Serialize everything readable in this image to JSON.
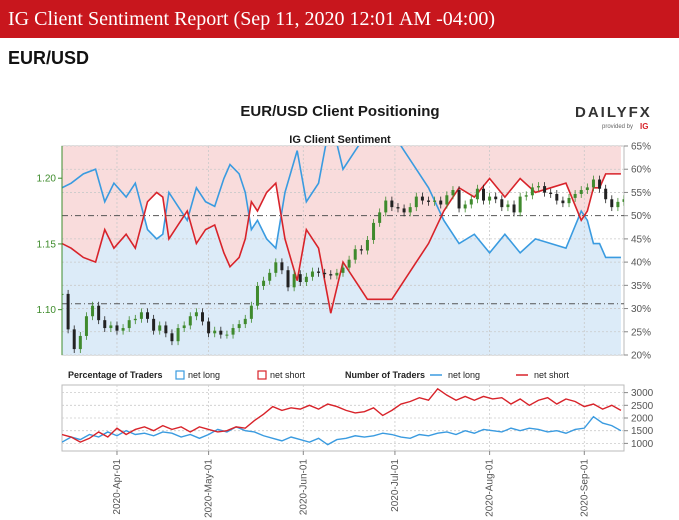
{
  "header": {
    "title": "IG Client Sentiment Report (Sep 11, 2020 12:01 AM -04:00)",
    "pair": "EUR/USD"
  },
  "brand": {
    "name": "DAILYFX",
    "provided_by": "provided by",
    "ig": "IG"
  },
  "colors": {
    "banner": "#c8161d",
    "net_long": "#3a9be0",
    "net_short": "#d8232a",
    "long_fill": "#dcebf8",
    "short_fill": "#f9dcdc",
    "candle_up": "#3f8a2d",
    "candle_down": "#222222"
  },
  "chart_data": [
    {
      "type": "line",
      "title": "EUR/USD Client Positioning",
      "subtitle": "IG Client Sentiment",
      "x_ticks": [
        "2020-Apr-01",
        "2020-May-01",
        "2020-Jun-01",
        "2020-Jul-01",
        "2020-Aug-01",
        "2020-Sep-01"
      ],
      "x_tick_days": [
        18,
        48,
        79,
        109,
        140,
        171
      ],
      "left_axis": {
        "ticks": [
          1.1,
          1.15,
          1.2
        ],
        "tick_labels": [
          "1.10",
          "1.15",
          "1.20"
        ],
        "ylim": [
          1.0655,
          1.2245
        ]
      },
      "right_axis": {
        "ticks": [
          20,
          25,
          30,
          35,
          40,
          45,
          50,
          55,
          60,
          65
        ],
        "tick_labels": [
          "20%",
          "25%",
          "30%",
          "35%",
          "40%",
          "45%",
          "50%",
          "55%",
          "60%",
          "65%"
        ],
        "ylim": [
          20,
          65
        ]
      },
      "reference_lines": {
        "percent": 50,
        "price": 1.1045
      },
      "series": [
        {
          "name": "net long",
          "unit": "percent",
          "x": [
            0,
            3,
            7,
            11,
            14,
            17,
            21,
            24,
            28,
            31,
            33,
            35,
            38,
            41,
            44,
            47,
            50,
            53,
            55,
            58,
            60,
            62,
            64,
            67,
            70,
            73,
            77,
            80,
            84,
            88,
            92,
            96,
            100,
            104,
            108,
            112,
            116,
            120,
            125,
            130,
            135,
            140,
            145,
            150,
            155,
            160,
            165,
            170,
            172,
            174,
            176,
            178,
            180,
            183
          ],
          "y": [
            56,
            57,
            59,
            60,
            53,
            57,
            54,
            57,
            47,
            45,
            46,
            55,
            52,
            49,
            56,
            53,
            52,
            58,
            61,
            59,
            55,
            47,
            49,
            45,
            43,
            55,
            64,
            53,
            57,
            71,
            60,
            64,
            68,
            68,
            68,
            64,
            60,
            56,
            49,
            44,
            46,
            42,
            46,
            42,
            45,
            44,
            43,
            51,
            49,
            44,
            44,
            41,
            41,
            41
          ]
        },
        {
          "name": "price",
          "unit": "EUR/USD",
          "x": [
            0,
            2,
            4,
            6,
            8,
            10,
            12,
            14,
            16,
            18,
            20,
            22,
            24,
            26,
            28,
            30,
            32,
            34,
            36,
            38,
            40,
            42,
            44,
            46,
            48,
            50,
            52,
            54,
            56,
            58,
            60,
            62,
            64,
            66,
            68,
            70,
            72,
            74,
            76,
            78,
            80,
            82,
            84,
            86,
            88,
            90,
            92,
            94,
            96,
            98,
            100,
            102,
            104,
            106,
            108,
            110,
            112,
            114,
            116,
            118,
            120,
            122,
            124,
            126,
            128,
            130,
            132,
            134,
            136,
            138,
            140,
            142,
            144,
            146,
            148,
            150,
            152,
            154,
            156,
            158,
            160,
            162,
            164,
            166,
            168,
            170,
            172,
            174,
            176,
            178,
            180,
            182,
            184
          ],
          "y": [
            1.112,
            1.085,
            1.07,
            1.08,
            1.095,
            1.103,
            1.092,
            1.086,
            1.088,
            1.084,
            1.086,
            1.092,
            1.093,
            1.098,
            1.093,
            1.084,
            1.088,
            1.082,
            1.076,
            1.086,
            1.088,
            1.095,
            1.098,
            1.091,
            1.082,
            1.084,
            1.081,
            1.081,
            1.086,
            1.089,
            1.093,
            1.103,
            1.118,
            1.122,
            1.128,
            1.136,
            1.13,
            1.117,
            1.127,
            1.121,
            1.125,
            1.129,
            1.128,
            1.127,
            1.126,
            1.128,
            1.132,
            1.138,
            1.146,
            1.145,
            1.153,
            1.166,
            1.174,
            1.183,
            1.178,
            1.177,
            1.174,
            1.178,
            1.186,
            1.183,
            1.182,
            1.183,
            1.18,
            1.187,
            1.191,
            1.177,
            1.18,
            1.184,
            1.192,
            1.183,
            1.186,
            1.184,
            1.178,
            1.18,
            1.174,
            1.186,
            1.187,
            1.193,
            1.194,
            1.189,
            1.188,
            1.183,
            1.181,
            1.185,
            1.188,
            1.191,
            1.193,
            1.199,
            1.192,
            1.184,
            1.178,
            1.182,
            1.184
          ]
        },
        {
          "name": "net short",
          "unit": "percent",
          "x": [
            0,
            3,
            7,
            11,
            14,
            17,
            21,
            24,
            28,
            31,
            33,
            35,
            38,
            41,
            44,
            47,
            50,
            53,
            55,
            58,
            60,
            62,
            64,
            67,
            70,
            73,
            77,
            80,
            84,
            88,
            92,
            96,
            100,
            104,
            108,
            112,
            116,
            120,
            125,
            130,
            135,
            140,
            145,
            150,
            155,
            160,
            165,
            170,
            172,
            174,
            176,
            178,
            180,
            183
          ],
          "y": [
            44,
            43,
            41,
            40,
            47,
            43,
            46,
            43,
            53,
            55,
            54,
            45,
            48,
            51,
            44,
            47,
            48,
            42,
            39,
            41,
            45,
            53,
            51,
            55,
            57,
            45,
            36,
            47,
            43,
            29,
            40,
            36,
            32,
            32,
            32,
            36,
            40,
            44,
            51,
            56,
            54,
            58,
            54,
            58,
            55,
            56,
            57,
            49,
            51,
            56,
            56,
            59,
            59,
            59
          ]
        }
      ]
    },
    {
      "type": "line",
      "legend_groups": [
        {
          "title": "Percentage of Traders",
          "items": [
            {
              "name": "net long",
              "style": "box"
            },
            {
              "name": "net short",
              "style": "box"
            }
          ]
        },
        {
          "title": "Number of Traders",
          "items": [
            {
              "name": "net long",
              "style": "line"
            },
            {
              "name": "net short",
              "style": "line"
            }
          ]
        }
      ],
      "right_axis": {
        "ticks": [
          1000,
          1500,
          2000,
          2500,
          3000
        ],
        "tick_labels": [
          "1000",
          "1500",
          "2000",
          "2500",
          "3000"
        ],
        "ylim": [
          700,
          3300
        ]
      },
      "series": [
        {
          "name": "net long",
          "x": [
            0,
            3,
            6,
            9,
            12,
            15,
            18,
            21,
            24,
            27,
            30,
            33,
            36,
            39,
            42,
            45,
            48,
            51,
            54,
            57,
            60,
            63,
            66,
            69,
            72,
            75,
            78,
            81,
            84,
            87,
            90,
            93,
            96,
            99,
            102,
            105,
            108,
            111,
            114,
            117,
            120,
            123,
            126,
            129,
            132,
            135,
            138,
            141,
            144,
            147,
            150,
            153,
            156,
            159,
            162,
            165,
            168,
            171,
            174,
            177,
            180,
            183
          ],
          "y": [
            1050,
            1250,
            1150,
            1350,
            1250,
            1450,
            1300,
            1500,
            1350,
            1400,
            1300,
            1450,
            1400,
            1250,
            1350,
            1200,
            1350,
            1550,
            1450,
            1650,
            1500,
            1450,
            1300,
            1200,
            1100,
            1250,
            1150,
            1050,
            1200,
            950,
            1150,
            1200,
            1300,
            1250,
            1300,
            1400,
            1350,
            1250,
            1200,
            1350,
            1300,
            1400,
            1450,
            1350,
            1500,
            1400,
            1550,
            1500,
            1450,
            1600,
            1500,
            1600,
            1550,
            1450,
            1500,
            1400,
            1550,
            1600,
            2050,
            1800,
            1700,
            1500
          ]
        },
        {
          "name": "net short",
          "x": [
            0,
            3,
            6,
            9,
            12,
            15,
            18,
            21,
            24,
            27,
            30,
            33,
            36,
            39,
            42,
            45,
            48,
            51,
            54,
            57,
            60,
            63,
            66,
            69,
            72,
            75,
            78,
            81,
            84,
            87,
            90,
            93,
            96,
            99,
            102,
            105,
            108,
            111,
            114,
            117,
            120,
            123,
            126,
            129,
            132,
            135,
            138,
            141,
            144,
            147,
            150,
            153,
            156,
            159,
            162,
            165,
            168,
            171,
            174,
            177,
            180,
            183
          ],
          "y": [
            1350,
            1250,
            1050,
            1200,
            1450,
            1250,
            1600,
            1350,
            1550,
            1650,
            1500,
            1700,
            1550,
            1650,
            1450,
            1650,
            1550,
            1450,
            1500,
            1650,
            1600,
            1900,
            2150,
            2450,
            2300,
            2400,
            2350,
            2500,
            2350,
            2550,
            2450,
            2300,
            2200,
            2250,
            2400,
            2100,
            2300,
            2550,
            2650,
            2800,
            2700,
            3150,
            2900,
            2700,
            2850,
            2700,
            2850,
            2750,
            2800,
            2550,
            2750,
            2500,
            2700,
            2800,
            2550,
            2750,
            2650,
            2450,
            2550,
            2350,
            2500,
            2300
          ]
        }
      ]
    }
  ]
}
